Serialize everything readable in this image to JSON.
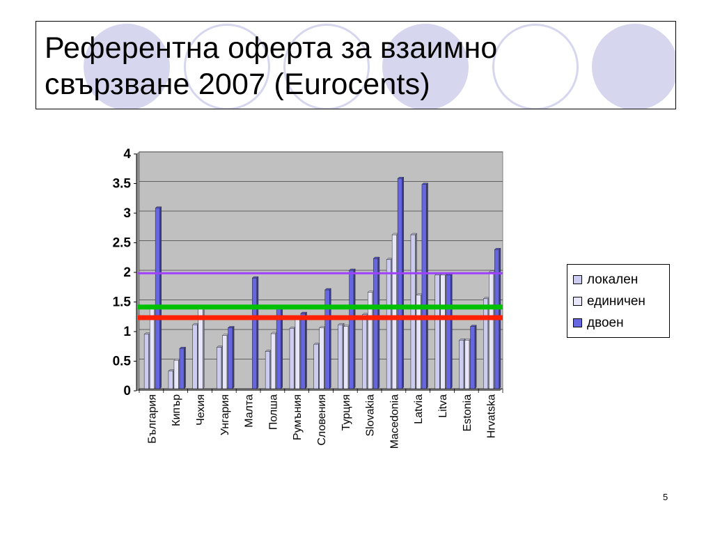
{
  "slide": {
    "title": "Референтна оферта за взаимно\nсвързване 2007 (Eurocents)",
    "page_number": "5"
  },
  "colors": {
    "local": "#ccccf0",
    "single": "#e6e6f8",
    "double": "#6666e0",
    "plot_bg": "#c0c0c0",
    "line_purple": "#a040ff",
    "line_green": "#00c000",
    "line_red": "#ff2000",
    "decoration": "#d6d6ef"
  },
  "chart_data": {
    "type": "bar",
    "categories": [
      "България",
      "Кипър",
      "Чехия",
      "Унгария",
      "Малта",
      "Полша",
      "Румъния",
      "Словения",
      "Турция",
      "Slovakia",
      "Macedonia",
      "Latvia",
      "Litva",
      "Estonia",
      "Hrvatska"
    ],
    "series": [
      {
        "name": "локален",
        "color_key": "local",
        "values": [
          0.92,
          0.3,
          1.08,
          0.7,
          null,
          0.63,
          1.02,
          0.75,
          1.08,
          1.25,
          2.18,
          2.6,
          1.92,
          0.82,
          1.52
        ]
      },
      {
        "name": "единичен",
        "color_key": "single",
        "values": [
          1.37,
          0.48,
          1.37,
          0.9,
          null,
          0.93,
          1.2,
          1.03,
          1.05,
          1.63,
          2.6,
          1.58,
          1.92,
          0.82,
          1.97
        ]
      },
      {
        "name": "двоен",
        "color_key": "double",
        "values": [
          3.05,
          0.68,
          null,
          1.03,
          1.87,
          1.37,
          1.27,
          1.67,
          2.0,
          2.2,
          3.55,
          3.45,
          1.92,
          1.05,
          2.35
        ]
      }
    ],
    "y_ticks": [
      "0",
      "0.5",
      "1",
      "1.5",
      "2",
      "2.5",
      "3",
      "3.5",
      "4"
    ],
    "ylim": [
      0,
      4
    ],
    "grid": true,
    "legend_position": "right",
    "reference_lines": [
      {
        "value": 1.95,
        "color_key": "line_purple"
      },
      {
        "value": 1.38,
        "color_key": "line_green"
      },
      {
        "value": 1.2,
        "color_key": "line_red"
      }
    ]
  }
}
